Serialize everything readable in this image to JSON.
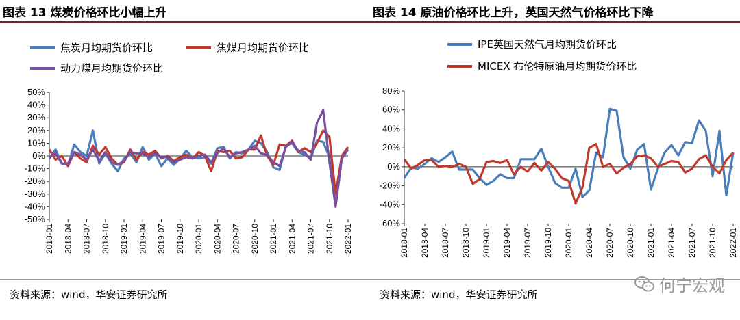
{
  "left": {
    "title": "图表 13  煤炭价格环比小幅上升",
    "source": "资料来源：wind，华安证券研究所"
  },
  "right": {
    "title": "图表 14  原油价格环比上升，英国天然气价格环比下降",
    "source": "资料来源：wind，华安证券研究所"
  },
  "watermark": {
    "text": "何宁宏观"
  },
  "chart_data": [
    {
      "type": "line",
      "title": "煤炭价格环比小幅上升",
      "x": [
        "2018-01",
        "2018-02",
        "2018-03",
        "2018-04",
        "2018-05",
        "2018-06",
        "2018-07",
        "2018-08",
        "2018-09",
        "2018-10",
        "2018-11",
        "2018-12",
        "2019-01",
        "2019-02",
        "2019-03",
        "2019-04",
        "2019-05",
        "2019-06",
        "2019-07",
        "2019-08",
        "2019-09",
        "2019-10",
        "2019-11",
        "2019-12",
        "2020-01",
        "2020-02",
        "2020-03",
        "2020-04",
        "2020-05",
        "2020-06",
        "2020-07",
        "2020-08",
        "2020-09",
        "2020-10",
        "2020-11",
        "2020-12",
        "2021-01",
        "2021-02",
        "2021-03",
        "2021-04",
        "2021-05",
        "2021-06",
        "2021-07",
        "2021-08",
        "2021-09",
        "2021-10",
        "2021-11",
        "2021-12",
        "2022-01"
      ],
      "xticks": [
        "2018-01",
        "2018-04",
        "2018-07",
        "2018-10",
        "2019-01",
        "2019-04",
        "2019-07",
        "2019-10",
        "2020-01",
        "2020-04",
        "2020-07",
        "2020-10",
        "2021-01",
        "2021-04",
        "2021-07",
        "2021-10",
        "2022-01"
      ],
      "ylim": [
        -50,
        50
      ],
      "yticks": [
        "50%",
        "40%",
        "30%",
        "20%",
        "10%",
        "0%",
        "-10%",
        "-20%",
        "-30%",
        "-40%",
        "-50%"
      ],
      "ytick_values": [
        50,
        40,
        30,
        20,
        10,
        0,
        -10,
        -20,
        -30,
        -40,
        -50
      ],
      "series": [
        {
          "name": "焦炭月均期货价环比",
          "color": "#4a7ebb",
          "values": [
            -2,
            5,
            -6,
            -7,
            9,
            3,
            0,
            20,
            -6,
            2,
            -6,
            -12,
            -2,
            2,
            -5,
            7,
            -3,
            2,
            -8,
            -2,
            -7,
            -2,
            4,
            -1,
            -2,
            -1,
            -6,
            6,
            7,
            -2,
            3,
            2,
            5,
            12,
            10,
            3,
            -9,
            -11,
            8,
            10,
            3,
            1,
            -2,
            12,
            11,
            -1,
            -38,
            0,
            5
          ]
        },
        {
          "name": "焦煤月均期货价环比",
          "color": "#c0392b",
          "values": [
            5,
            -3,
            0,
            -8,
            3,
            -2,
            -5,
            8,
            1,
            7,
            -2,
            -7,
            -5,
            5,
            -3,
            3,
            1,
            4,
            -2,
            0,
            -4,
            -1,
            1,
            -2,
            3,
            0,
            -12,
            4,
            3,
            4,
            -2,
            -1,
            5,
            5,
            16,
            0,
            -7,
            9,
            8,
            12,
            3,
            6,
            3,
            10,
            20,
            15,
            -30,
            0,
            7
          ]
        },
        {
          "name": "动力煤月均期货价环比",
          "color": "#7b4fa0",
          "values": [
            -1,
            2,
            -6,
            -6,
            3,
            1,
            -3,
            5,
            -4,
            3,
            -5,
            -7,
            -4,
            3,
            2,
            2,
            -1,
            2,
            -1,
            -1,
            -5,
            -3,
            -1,
            -2,
            0,
            1,
            -5,
            2,
            6,
            -1,
            2,
            3,
            5,
            8,
            2,
            1,
            -5,
            -8,
            7,
            11,
            4,
            3,
            -3,
            26,
            36,
            -5,
            -40,
            -2,
            5
          ]
        }
      ]
    },
    {
      "type": "line",
      "title": "原油价格环比上升，英国天然气价格环比下降",
      "x": [
        "2018-01",
        "2018-02",
        "2018-03",
        "2018-04",
        "2018-05",
        "2018-06",
        "2018-07",
        "2018-08",
        "2018-09",
        "2018-10",
        "2018-11",
        "2018-12",
        "2019-01",
        "2019-02",
        "2019-03",
        "2019-04",
        "2019-05",
        "2019-06",
        "2019-07",
        "2019-08",
        "2019-09",
        "2019-10",
        "2019-11",
        "2019-12",
        "2020-01",
        "2020-02",
        "2020-03",
        "2020-04",
        "2020-05",
        "2020-06",
        "2020-07",
        "2020-08",
        "2020-09",
        "2020-10",
        "2020-11",
        "2020-12",
        "2021-01",
        "2021-02",
        "2021-03",
        "2021-04",
        "2021-05",
        "2021-06",
        "2021-07",
        "2021-08",
        "2021-09",
        "2021-10",
        "2021-11",
        "2021-12",
        "2022-01"
      ],
      "xticks": [
        "2018-01",
        "2018-04",
        "2018-07",
        "2018-10",
        "2019-01",
        "2019-04",
        "2019-07",
        "2019-10",
        "2020-01",
        "2020-04",
        "2020-07",
        "2020-10",
        "2021-01",
        "2021-04",
        "2021-07",
        "2021-10",
        "2022-01"
      ],
      "ylim": [
        -60,
        80
      ],
      "yticks": [
        "80%",
        "60%",
        "40%",
        "20%",
        "0%",
        "-20%",
        "-40%",
        "-60%"
      ],
      "ytick_values": [
        80,
        60,
        40,
        20,
        0,
        -20,
        -40,
        -60
      ],
      "series": [
        {
          "name": "IPE英国天然气月均期货价环比",
          "color": "#4a7ebb",
          "values": [
            -12,
            -1,
            -2,
            3,
            9,
            5,
            10,
            16,
            -3,
            -3,
            -3,
            -12,
            -19,
            -15,
            -8,
            -12,
            -12,
            8,
            8,
            8,
            19,
            0,
            -17,
            -22,
            -22,
            -2,
            -32,
            -25,
            15,
            10,
            61,
            59,
            10,
            -2,
            18,
            24,
            -24,
            -2,
            15,
            23,
            12,
            26,
            25,
            49,
            38,
            -10,
            38,
            -30,
            15
          ]
        },
        {
          "name": "MICEX 布伦特原油月均期货价环比",
          "color": "#c0392b",
          "values": [
            8,
            -2,
            2,
            7,
            7,
            0,
            1,
            0,
            3,
            0,
            -18,
            -13,
            5,
            6,
            4,
            7,
            -8,
            0,
            -5,
            4,
            -4,
            5,
            -2,
            -12,
            -15,
            -39,
            -22,
            20,
            24,
            0,
            3,
            -7,
            -1,
            3,
            11,
            12,
            9,
            0,
            3,
            6,
            5,
            -6,
            -2,
            8,
            12,
            0,
            -7,
            7,
            15
          ]
        }
      ]
    }
  ]
}
